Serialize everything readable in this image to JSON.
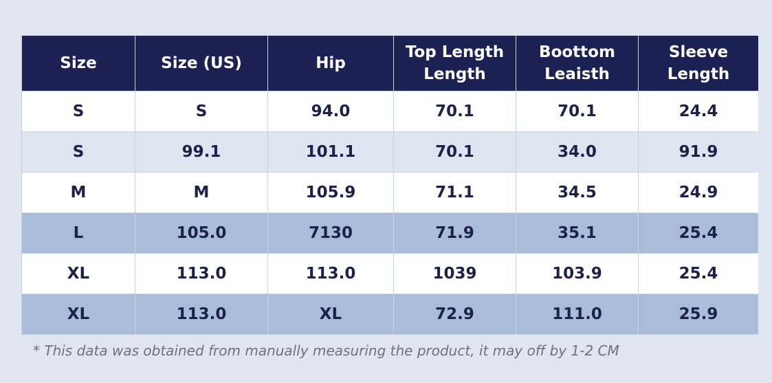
{
  "table": {
    "header": [
      [
        "Size"
      ],
      [
        "Size (US)"
      ],
      [
        "Hip"
      ],
      [
        "Top Length",
        "Length"
      ],
      [
        "Boottom",
        "Leaisth"
      ],
      [
        "Sleeve",
        "Length"
      ]
    ],
    "rows": [
      [
        "S",
        "S",
        "94.0",
        "70.1",
        "70.1",
        "24.4"
      ],
      [
        "S",
        "99.1",
        "101.1",
        "70.1",
        "34.0",
        "91.9"
      ],
      [
        "M",
        "M",
        "105.9",
        "71.1",
        "34.5",
        "24.9"
      ],
      [
        "L",
        "105.0",
        "7130",
        "71.9",
        "35.1",
        "25.4"
      ],
      [
        "XL",
        "113.0",
        "113.0",
        "1039",
        "103.9",
        "25.4"
      ],
      [
        "XL",
        "113.0",
        "XL",
        "72.9",
        "111.0",
        "25.9"
      ]
    ]
  },
  "footnote": "* This data was obtained from manually measuring the product, it may off by 1-2 CM"
}
